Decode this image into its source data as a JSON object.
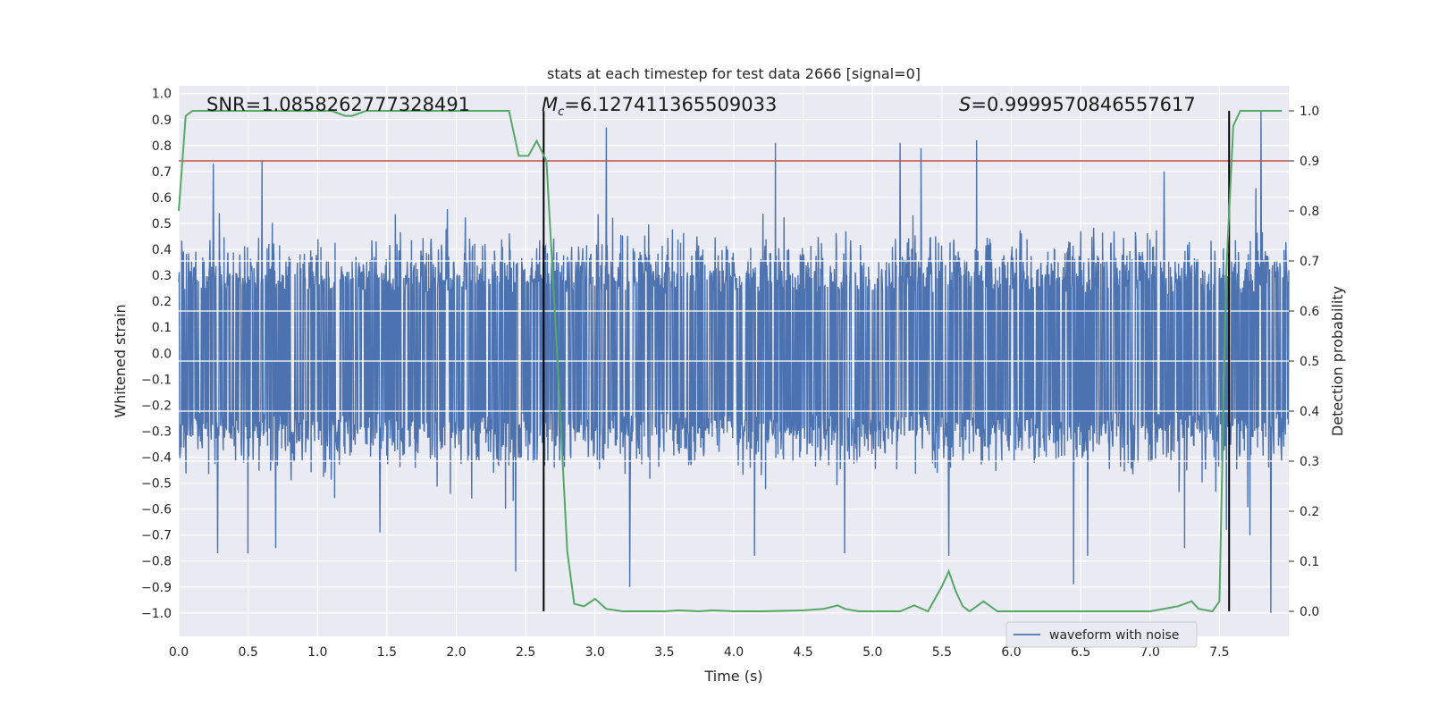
{
  "chart_data": {
    "type": "line",
    "title": "stats at each timestep for test data 2666 [signal=0]",
    "xlabel": "Time (s)",
    "ylabel": "Whitened strain",
    "y2label": "Detection probability",
    "xlim": [
      0.0,
      8.0
    ],
    "ylim": [
      -1.09,
      1.03
    ],
    "y2lim": [
      -0.05,
      1.05
    ],
    "x_ticks": [
      "0.0",
      "0.5",
      "1.0",
      "1.5",
      "2.0",
      "2.5",
      "3.0",
      "3.5",
      "4.0",
      "4.5",
      "5.0",
      "5.5",
      "6.0",
      "6.5",
      "7.0",
      "7.5"
    ],
    "y_ticks": [
      "1.0",
      "0.9",
      "0.8",
      "0.7",
      "0.6",
      "0.5",
      "0.4",
      "0.3",
      "0.2",
      "0.1",
      "0.0",
      "−0.1",
      "−0.2",
      "−0.3",
      "−0.4",
      "−0.5",
      "−0.6",
      "−0.7",
      "−0.8",
      "−0.9",
      "−1.0"
    ],
    "y2_ticks": [
      "1.0",
      "0.9",
      "0.8",
      "0.7",
      "0.6",
      "0.5",
      "0.4",
      "0.3",
      "0.2",
      "0.1",
      "0.0"
    ],
    "grid": true,
    "legend": {
      "placement": "bottom-right",
      "entries": [
        "waveform with noise"
      ]
    },
    "annotations": {
      "snr": "SNR=1.0858262777328491",
      "mc_symbol": "M",
      "mc_sub": "c",
      "mc_value": "=6.127411365509033",
      "s_symbol": "S",
      "s_value": "=0.9999570846557617"
    },
    "series": [
      {
        "name": "waveform with noise",
        "color": "#4c72b0",
        "kind": "noise",
        "x_range": [
          0.0,
          8.0
        ],
        "envelope_pos": [
          0.3,
          0.48
        ],
        "envelope_neg": [
          -0.3,
          -0.48
        ],
        "spikes": [
          {
            "x": 0.25,
            "y": 0.73
          },
          {
            "x": 0.6,
            "y": 0.74
          },
          {
            "x": 0.28,
            "y": -0.77
          },
          {
            "x": 0.5,
            "y": -0.77
          },
          {
            "x": 0.7,
            "y": -0.75
          },
          {
            "x": 1.45,
            "y": -0.69
          },
          {
            "x": 2.43,
            "y": -0.84
          },
          {
            "x": 3.08,
            "y": 0.87
          },
          {
            "x": 3.25,
            "y": -0.9
          },
          {
            "x": 4.3,
            "y": 0.81
          },
          {
            "x": 4.15,
            "y": -0.78
          },
          {
            "x": 4.8,
            "y": -0.77
          },
          {
            "x": 5.2,
            "y": 0.81
          },
          {
            "x": 5.35,
            "y": 0.79
          },
          {
            "x": 5.55,
            "y": -0.78
          },
          {
            "x": 5.75,
            "y": 0.82
          },
          {
            "x": 6.45,
            "y": -0.89
          },
          {
            "x": 6.55,
            "y": -0.78
          },
          {
            "x": 7.1,
            "y": 0.7
          },
          {
            "x": 7.25,
            "y": -0.75
          },
          {
            "x": 7.55,
            "y": -0.68
          },
          {
            "x": 7.8,
            "y": 0.93
          },
          {
            "x": 7.87,
            "y": -1.0
          },
          {
            "x": 7.72,
            "y": -0.7
          }
        ]
      },
      {
        "name": "detection probability",
        "color": "#55a868",
        "axis": "right",
        "x": [
          0.0,
          0.05,
          0.1,
          0.2,
          0.3,
          0.5,
          0.75,
          1.0,
          1.1,
          1.2,
          1.25,
          1.35,
          1.5,
          1.75,
          2.0,
          2.25,
          2.38,
          2.45,
          2.52,
          2.58,
          2.65,
          2.72,
          2.8,
          2.85,
          2.92,
          3.0,
          3.08,
          3.2,
          3.5,
          3.6,
          3.75,
          3.85,
          4.0,
          4.2,
          4.5,
          4.65,
          4.75,
          4.8,
          4.9,
          5.0,
          5.2,
          5.3,
          5.4,
          5.5,
          5.55,
          5.6,
          5.65,
          5.7,
          5.8,
          5.9,
          6.0,
          6.2,
          6.5,
          6.8,
          7.0,
          7.2,
          7.3,
          7.35,
          7.45,
          7.5,
          7.55,
          7.6,
          7.65,
          7.75,
          7.85,
          7.95
        ],
        "y": [
          0.8,
          0.99,
          1.0,
          1.0,
          1.0,
          1.0,
          1.0,
          1.0,
          1.0,
          0.99,
          0.99,
          1.0,
          1.0,
          1.0,
          1.0,
          1.0,
          1.0,
          0.91,
          0.91,
          0.94,
          0.9,
          0.55,
          0.12,
          0.015,
          0.01,
          0.025,
          0.005,
          0.0,
          0.0,
          0.002,
          0.0,
          0.002,
          0.0,
          0.0,
          0.002,
          0.005,
          0.012,
          0.005,
          0.0,
          0.0,
          0.0,
          0.012,
          0.0,
          0.05,
          0.08,
          0.04,
          0.01,
          0.0,
          0.02,
          0.0,
          0.0,
          0.0,
          0.0,
          0.0,
          0.0,
          0.01,
          0.02,
          0.005,
          0.0,
          0.02,
          0.68,
          0.97,
          1.0,
          1.0,
          1.0,
          1.0
        ]
      },
      {
        "name": "threshold",
        "color": "#c44e52",
        "axis": "right",
        "value": 0.9
      }
    ],
    "vlines": [
      2.63,
      7.57
    ],
    "vline_top": 1.0
  }
}
